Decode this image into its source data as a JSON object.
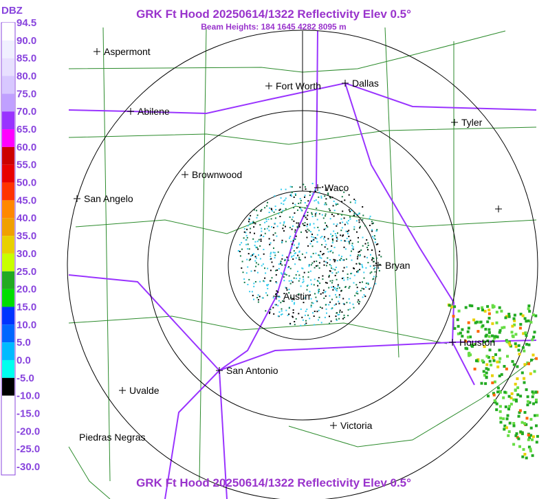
{
  "header": {
    "title": "GRK Ft Hood 20250614/1322 Reflectivity Elev 0.5°",
    "subtitle": "Beam Heights: 184 1645 4282 8095 m"
  },
  "footer": {
    "title": "GRK Ft Hood 20250614/1322 Reflectivity Elev 0.5°"
  },
  "legend": {
    "unit": "DBZ",
    "labels": [
      "94.5",
      "90.0",
      "85.0",
      "80.0",
      "75.0",
      "70.0",
      "65.0",
      "60.0",
      "55.0",
      "50.0",
      "45.0",
      "40.0",
      "35.0",
      "30.0",
      "25.0",
      "20.0",
      "15.0",
      "10.0",
      "5.0",
      "0.0",
      "-5.0",
      "-10.0",
      "-15.0",
      "-20.0",
      "-25.0",
      "-30.0"
    ]
  },
  "cities": [
    "Aspermont",
    "Fort Worth",
    "Dallas",
    "Abilene",
    "Tyler",
    "Brownwood",
    "Waco",
    "San Angelo",
    "Bryan",
    "Austin",
    "Houston",
    "San Antonio",
    "Uvalde",
    "Victoria",
    "Piedras Negras"
  ]
}
